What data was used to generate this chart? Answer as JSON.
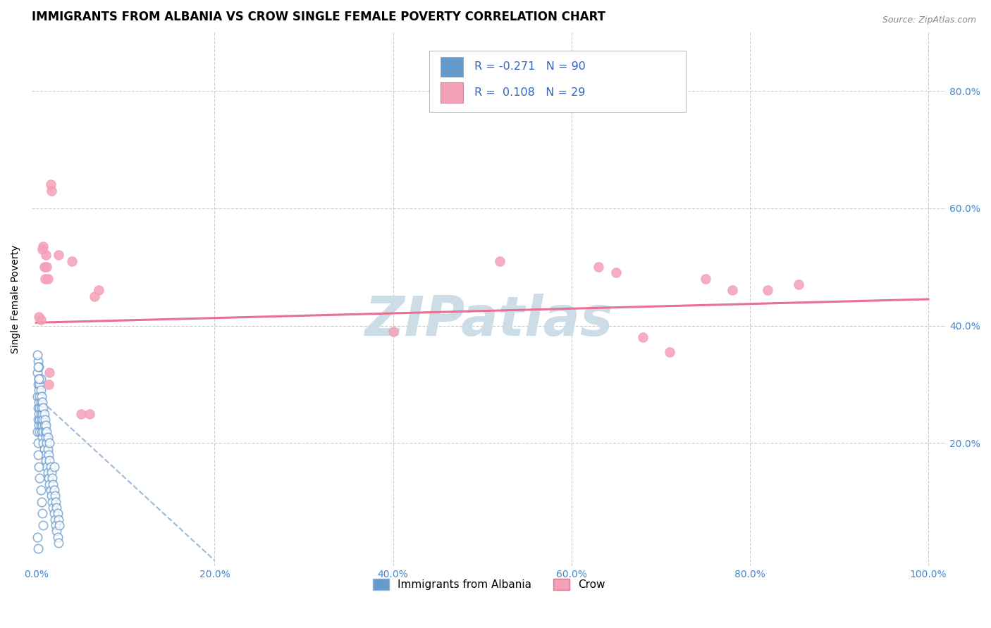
{
  "title": "IMMIGRANTS FROM ALBANIA VS CROW SINGLE FEMALE POVERTY CORRELATION CHART",
  "source": "Source: ZipAtlas.com",
  "ylabel": "Single Female Poverty",
  "x_tick_labels": [
    "0.0%",
    "20.0%",
    "40.0%",
    "60.0%",
    "80.0%",
    "100.0%"
  ],
  "x_tick_vals": [
    0.0,
    0.2,
    0.4,
    0.6,
    0.8,
    1.0
  ],
  "y_tick_labels": [
    "20.0%",
    "40.0%",
    "60.0%",
    "80.0%"
  ],
  "y_tick_vals": [
    0.2,
    0.4,
    0.6,
    0.8
  ],
  "xlim": [
    -0.005,
    1.02
  ],
  "ylim": [
    -0.01,
    0.9
  ],
  "legend_label_1": "Immigrants from Albania",
  "legend_label_2": "Crow",
  "R1": -0.271,
  "N1": 90,
  "R2": 0.108,
  "N2": 29,
  "color_albania_face": "#ffffff",
  "color_albania_edge": "#6699cc",
  "color_crow_face": "#f4a0b8",
  "color_crow_edge": "#f4a0b8",
  "trendline_color_albania": "#99bbdd",
  "trendline_color_crow": "#e87090",
  "watermark": "ZIPatlas",
  "watermark_color": "#ccdde8",
  "background_color": "#ffffff",
  "grid_color": "#cccccc",
  "title_fontsize": 12,
  "axis_label_fontsize": 10,
  "tick_fontsize": 10,
  "legend_box_color": "#ffffff",
  "legend_box_edge": "#cccccc",
  "albania_x": [
    0.001,
    0.001,
    0.001,
    0.002,
    0.002,
    0.002,
    0.002,
    0.002,
    0.003,
    0.003,
    0.003,
    0.003,
    0.003,
    0.003,
    0.004,
    0.004,
    0.004,
    0.004,
    0.004,
    0.005,
    0.005,
    0.005,
    0.005,
    0.005,
    0.006,
    0.006,
    0.006,
    0.006,
    0.007,
    0.007,
    0.007,
    0.007,
    0.008,
    0.008,
    0.008,
    0.008,
    0.009,
    0.009,
    0.009,
    0.01,
    0.01,
    0.01,
    0.011,
    0.011,
    0.011,
    0.012,
    0.012,
    0.012,
    0.013,
    0.013,
    0.013,
    0.014,
    0.014,
    0.015,
    0.015,
    0.015,
    0.016,
    0.016,
    0.017,
    0.017,
    0.018,
    0.018,
    0.019,
    0.019,
    0.02,
    0.02,
    0.02,
    0.021,
    0.021,
    0.022,
    0.022,
    0.023,
    0.023,
    0.024,
    0.024,
    0.025,
    0.025,
    0.026,
    0.002,
    0.003,
    0.004,
    0.005,
    0.006,
    0.007,
    0.008,
    0.001,
    0.002,
    0.003,
    0.001,
    0.002
  ],
  "albania_y": [
    0.28,
    0.32,
    0.22,
    0.3,
    0.26,
    0.34,
    0.2,
    0.24,
    0.29,
    0.25,
    0.31,
    0.23,
    0.27,
    0.33,
    0.3,
    0.26,
    0.22,
    0.28,
    0.24,
    0.27,
    0.23,
    0.29,
    0.25,
    0.31,
    0.26,
    0.22,
    0.28,
    0.24,
    0.25,
    0.21,
    0.27,
    0.23,
    0.24,
    0.2,
    0.26,
    0.22,
    0.23,
    0.19,
    0.25,
    0.22,
    0.18,
    0.24,
    0.21,
    0.17,
    0.23,
    0.2,
    0.16,
    0.22,
    0.19,
    0.15,
    0.21,
    0.18,
    0.14,
    0.17,
    0.13,
    0.2,
    0.16,
    0.12,
    0.15,
    0.11,
    0.14,
    0.1,
    0.13,
    0.09,
    0.12,
    0.08,
    0.16,
    0.11,
    0.07,
    0.1,
    0.06,
    0.09,
    0.05,
    0.08,
    0.04,
    0.07,
    0.03,
    0.06,
    0.18,
    0.16,
    0.14,
    0.12,
    0.1,
    0.08,
    0.06,
    0.35,
    0.33,
    0.31,
    0.04,
    0.02
  ],
  "crow_x": [
    0.003,
    0.005,
    0.007,
    0.008,
    0.009,
    0.01,
    0.011,
    0.012,
    0.013,
    0.014,
    0.015,
    0.016,
    0.017,
    0.025,
    0.04,
    0.05,
    0.06,
    0.065,
    0.07,
    0.4,
    0.52,
    0.63,
    0.65,
    0.68,
    0.71,
    0.75,
    0.78,
    0.82,
    0.855
  ],
  "crow_y": [
    0.415,
    0.41,
    0.53,
    0.535,
    0.5,
    0.48,
    0.52,
    0.5,
    0.48,
    0.3,
    0.32,
    0.64,
    0.63,
    0.52,
    0.51,
    0.25,
    0.25,
    0.45,
    0.46,
    0.39,
    0.51,
    0.5,
    0.49,
    0.38,
    0.355,
    0.48,
    0.46,
    0.46,
    0.47
  ],
  "crow_trendline_x": [
    0.0,
    1.0
  ],
  "crow_trendline_y": [
    0.405,
    0.445
  ],
  "albania_trendline_x": [
    0.0,
    0.2
  ],
  "albania_trendline_y": [
    0.28,
    0.0
  ]
}
